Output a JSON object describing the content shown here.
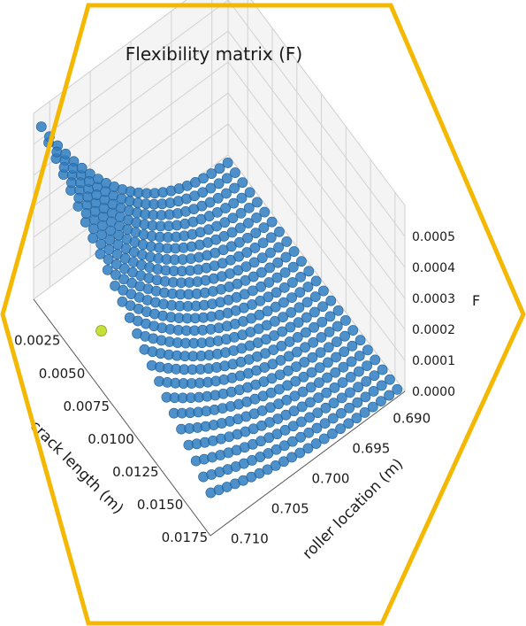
{
  "frame": {
    "shape": "hexagon",
    "border_color": "#f5b800"
  },
  "chart_data": {
    "type": "scatter",
    "projection": "3d",
    "title": "Flexibility matrix (F)",
    "xlabel": "crack length (m)",
    "ylabel": "roller location (m)",
    "zlabel": "F",
    "x_ticks": [
      "0.0025",
      "0.0050",
      "0.0075",
      "0.0100",
      "0.0125",
      "0.0150",
      "0.0175"
    ],
    "y_ticks": [
      "0.690",
      "0.695",
      "0.700",
      "0.705",
      "0.710"
    ],
    "z_ticks": [
      "0.0000",
      "0.0001",
      "0.0002",
      "0.0003",
      "0.0004",
      "0.0005"
    ],
    "xlim": [
      0.0005,
      0.0185
    ],
    "ylim": [
      0.688,
      0.712
    ],
    "zlim": [
      0.0,
      0.0006
    ],
    "grid": true,
    "grid_size": {
      "x_points": 24,
      "y_points": 24
    },
    "surface_model": "F increases with roller location (peak ~0.0006 at 0.712) and decreases with crack length",
    "series_color": "#2f7cc0",
    "highlight": {
      "x": 0.0045,
      "y": 0.7085,
      "z": 0.0,
      "color": "#c6e03a"
    }
  }
}
